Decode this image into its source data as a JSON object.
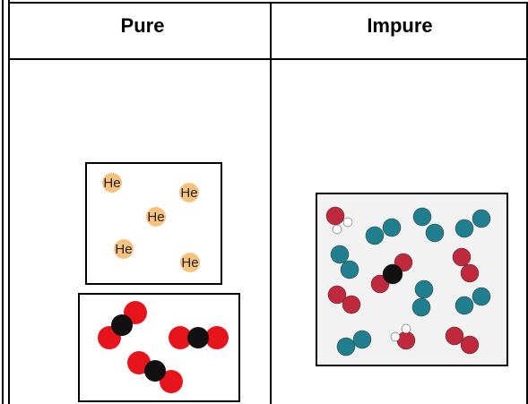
{
  "table": {
    "header": [
      "Pure",
      "Impure"
    ]
  },
  "helium": {
    "labels": [
      "He",
      "He",
      "He",
      "He",
      "He"
    ]
  }
}
